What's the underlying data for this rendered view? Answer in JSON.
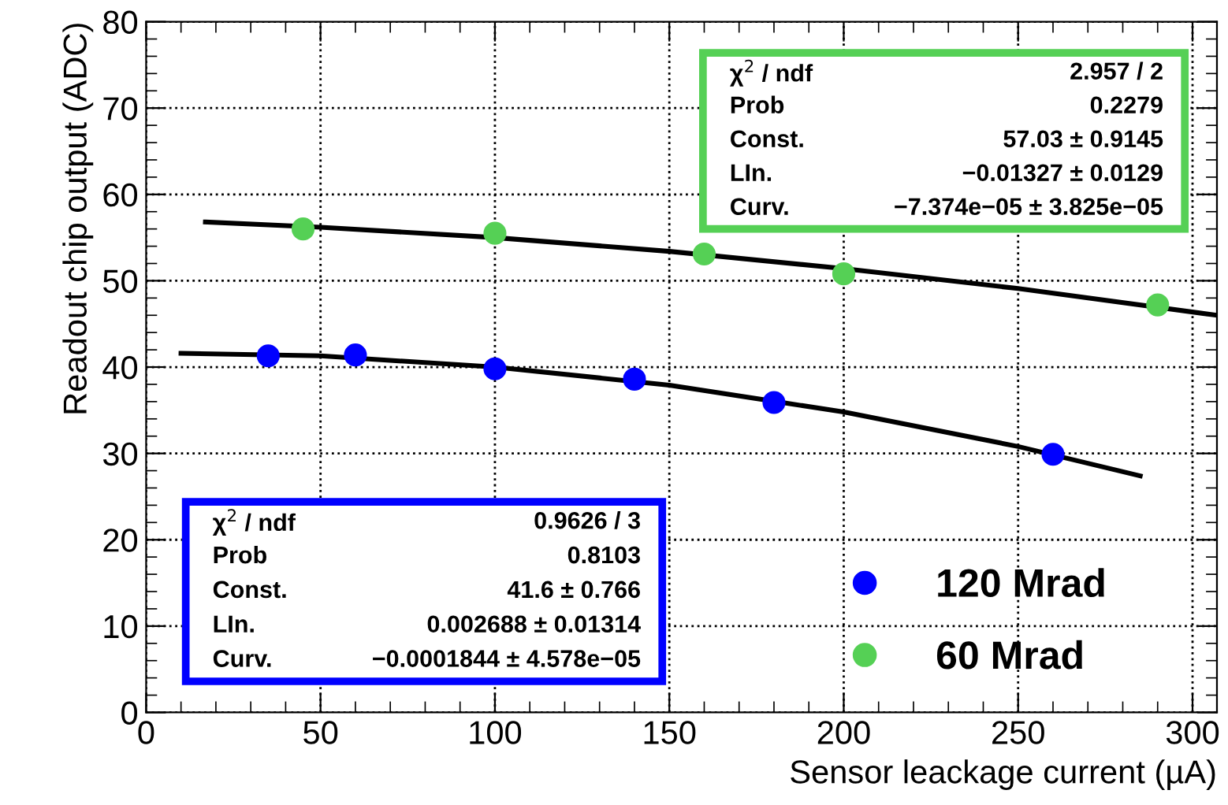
{
  "chart_data": {
    "type": "scatter",
    "xlabel": "Sensor leackage current (µA)",
    "ylabel": "Readout chip output (ADC)",
    "xlim": [
      0,
      307
    ],
    "ylim": [
      0,
      80
    ],
    "xticks": [
      0,
      50,
      100,
      150,
      200,
      250,
      300
    ],
    "yticks": [
      0,
      10,
      20,
      30,
      40,
      50,
      60,
      70,
      80
    ],
    "grid": true,
    "legend": "bottom right",
    "series": [
      {
        "name": "120 Mrad",
        "color": "#0000ff",
        "marker": "circle",
        "x": [
          35,
          60,
          100,
          140,
          180,
          260
        ],
        "values": [
          41.3,
          41.4,
          39.8,
          38.6,
          35.9,
          29.9
        ]
      },
      {
        "name": "60 Mrad",
        "color": "#55d055",
        "marker": "circle",
        "x": [
          45,
          100,
          160,
          200,
          290
        ],
        "values": [
          56.0,
          55.5,
          53.1,
          50.8,
          47.2
        ]
      },
      {
        "type": "line",
        "color": "#000000",
        "x": [
          10,
          50,
          100,
          150,
          200,
          250,
          285
        ],
        "values": [
          41.6,
          41.3,
          40.0,
          37.9,
          34.8,
          30.8,
          27.4
        ]
      },
      {
        "type": "line",
        "color": "#000000",
        "x": [
          17,
          50,
          100,
          150,
          200,
          250,
          307
        ],
        "values": [
          56.8,
          56.2,
          55.0,
          53.4,
          51.4,
          49.1,
          46.0
        ]
      }
    ],
    "annotations": [
      "χ$^{2}$ / ndf",
      "0.9626 / 3",
      "Prob",
      "0.8103",
      "Const.",
      "41.6 ± 0.766",
      "LIn.",
      "0.002688 ± 0.01314",
      "Curv.",
      "−0.0001844 ± 4.578e−05",
      "χ$^{2}$ / ndf",
      "2.957 / 2",
      "Prob",
      "0.2279",
      "Const.",
      "57.03 ± 0.9145",
      "LIn.",
      "−0.01327 ± 0.0129",
      "Curv.",
      "−7.374e−05 ± 3.825e−05"
    ]
  }
}
